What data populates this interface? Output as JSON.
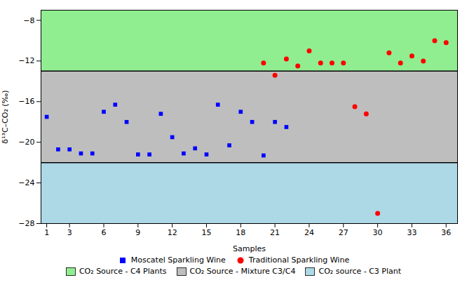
{
  "chart_data": {
    "type": "scatter",
    "xlabel": "Samples",
    "ylabel": "δ¹³C–CO₂ (‰)",
    "xlim": [
      0.5,
      37
    ],
    "ylim": [
      -28,
      -7
    ],
    "xticks": [
      1,
      3,
      6,
      9,
      12,
      15,
      18,
      21,
      24,
      27,
      30,
      33,
      36
    ],
    "yticks": [
      -8,
      -12,
      -16,
      -20,
      -24,
      -28
    ],
    "legend": "bottom",
    "series": [
      {
        "name": "Moscatel Sparkling Wine",
        "color": "#0000FF",
        "marker": "square",
        "x": [
          1,
          2,
          3,
          4,
          5,
          6,
          7,
          8,
          9,
          10,
          11,
          12,
          13,
          14,
          15,
          16,
          17,
          18,
          19,
          20,
          21,
          22
        ],
        "values": [
          -17.5,
          -20.7,
          -20.7,
          -21.1,
          -21.1,
          -17.0,
          -16.3,
          -18.0,
          -21.2,
          -21.2,
          -17.2,
          -19.5,
          -21.1,
          -20.6,
          -21.2,
          -16.3,
          -20.3,
          -17.0,
          -18.0,
          -21.3,
          -18.0,
          -18.5
        ]
      },
      {
        "name": "Traditional Sparkling Wine",
        "color": "#FF0000",
        "marker": "circle",
        "x": [
          20,
          21,
          22,
          23,
          24,
          25,
          26,
          27,
          28,
          29,
          30,
          31,
          32,
          33,
          34,
          35,
          36
        ],
        "values": [
          -12.2,
          -13.4,
          -11.8,
          -12.5,
          -11.0,
          -12.2,
          -12.2,
          -12.2,
          -16.5,
          -17.2,
          -27.0,
          -11.2,
          -12.2,
          -11.5,
          -12.0,
          -10.0,
          -10.2
        ]
      }
    ],
    "bands": [
      {
        "name": "CO₂ Source - C4 Plants",
        "color": "#90EE90",
        "range": [
          -13,
          -7
        ]
      },
      {
        "name": "CO₂ Source - Mixture C3/C4",
        "color": "#BEBEBE",
        "range": [
          -22,
          -13
        ]
      },
      {
        "name": "CO₂ source - C3 Plant",
        "color": "#ADD8E6",
        "range": [
          -28,
          -22
        ]
      }
    ],
    "hlines": [
      -13,
      -22
    ]
  }
}
